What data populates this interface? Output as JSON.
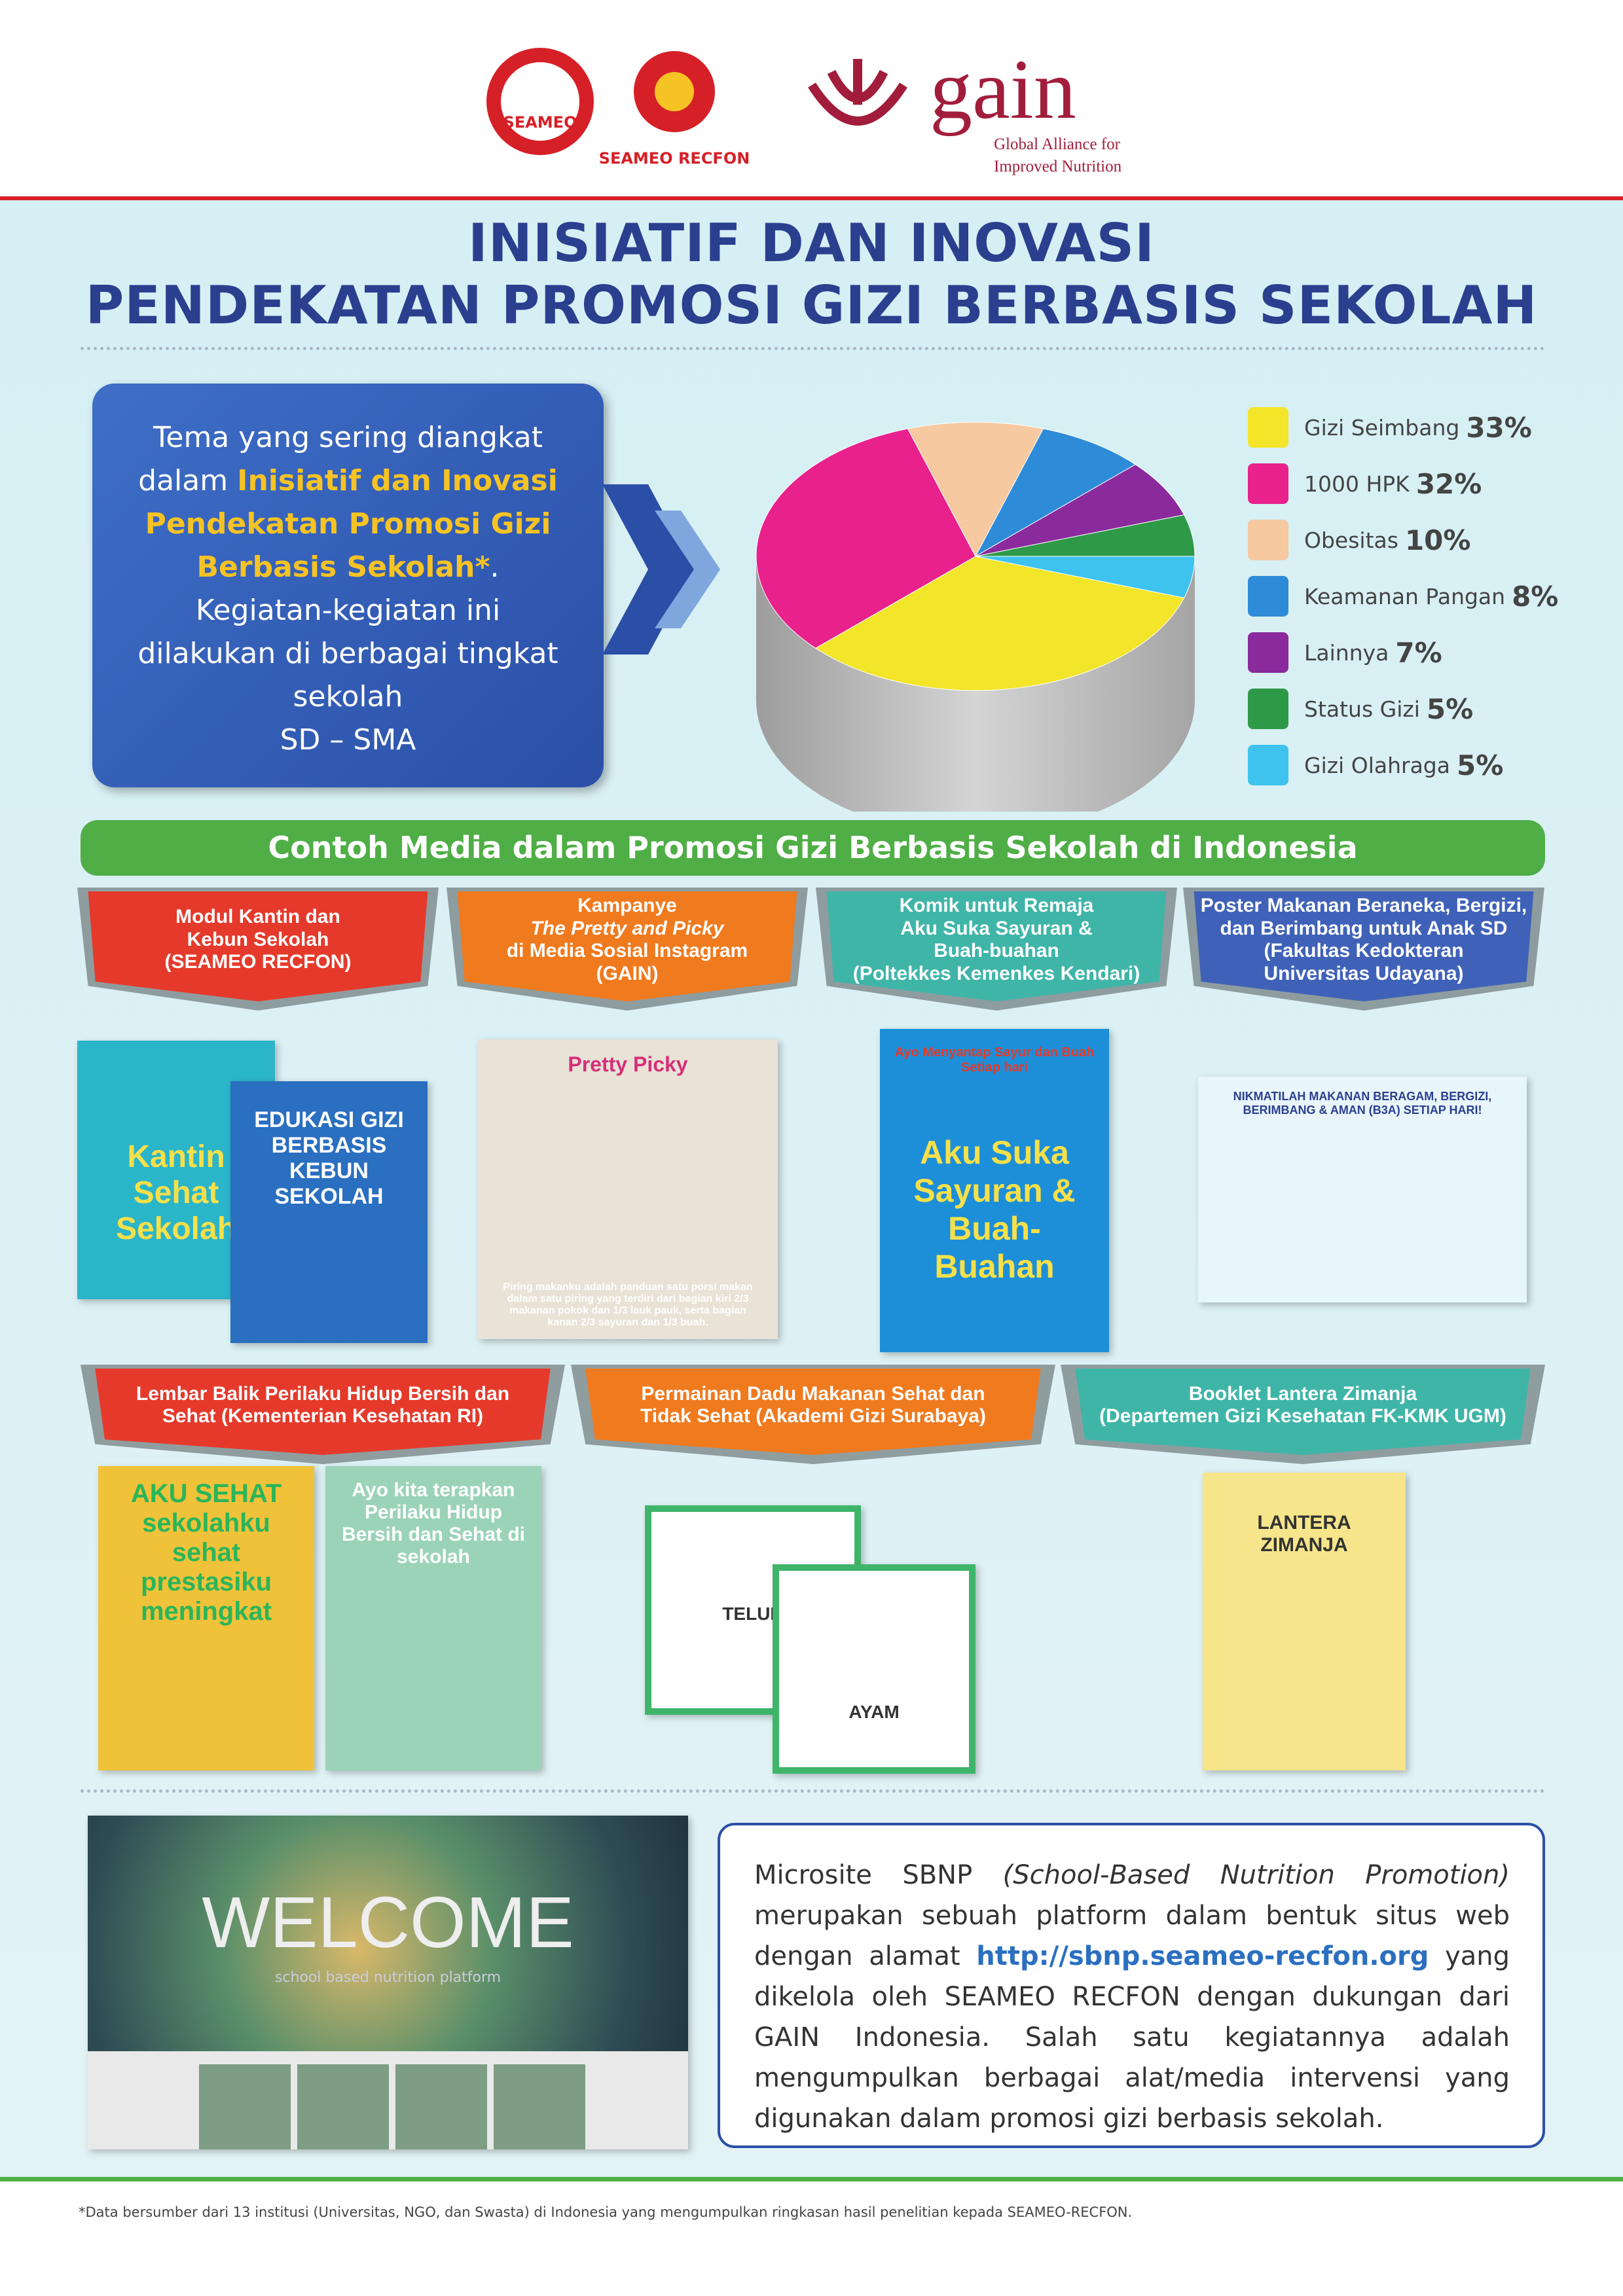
{
  "header": {
    "seameo": "SEAMEO",
    "recfon": "SEAMEO RECFON",
    "gain": "gain",
    "gain_full": [
      "Global Alliance for",
      "Improved Nutrition"
    ]
  },
  "title": [
    "INISIATIF DAN INOVASI",
    "PENDEKATAN PROMOSI GIZI BERBASIS SEKOLAH"
  ],
  "intro": {
    "text_1": "Tema yang sering diangkat dalam",
    "highlight": "Inisiatif dan Inovasi Pendekatan Promosi Gizi Berbasis Sekolah*",
    "text_2": ". Kegiatan-kegiatan ini dilakukan di berbagai tingkat sekolah",
    "text_3": "SD – SMA"
  },
  "chart_data": {
    "type": "pie",
    "categories": [
      "Gizi Seimbang",
      "1000 HPK",
      "Obesitas",
      "Keamanan Pangan",
      "Lainnya",
      "Status Gizi",
      "Gizi Olahraga"
    ],
    "values": [
      33,
      32,
      10,
      8,
      7,
      5,
      5
    ],
    "value_labels": [
      "33%",
      "32%",
      "10%",
      "8%",
      "7%",
      "5%",
      "5%"
    ],
    "colors": [
      "#f2e52a",
      "#e8218c",
      "#f6c9a0",
      "#2e8bd8",
      "#8b2a9c",
      "#2e9a48",
      "#3ec3ee"
    ],
    "legend": "right"
  },
  "media": {
    "banner": "Contoh Media dalam Promosi Gizi Berbasis Sekolah di Indonesia",
    "items": [
      {
        "title": [
          "Modul Kantin dan",
          "Kebun Sekolah",
          "(SEAMEO RECFON)"
        ],
        "image_texts": [
          "Kantin Sehat Sekolah",
          "EDUKASI GIZI BERBASIS KEBUN SEKOLAH"
        ]
      },
      {
        "title": [
          "Kampanye",
          "The Pretty and Picky",
          "di Media Sosial Instagram",
          "(GAIN)"
        ],
        "image_texts": [
          "Pretty Picky",
          "Piring makanku adalah panduan satu porsi makan dalam satu piring yang terdiri dari bagian kiri 2/3 makanan pokok dan 1/3 lauk pauk, serta bagian kanan 2/3 sayuran dan 1/3 buah."
        ]
      },
      {
        "title": [
          "Komik untuk Remaja",
          "Aku Suka Sayuran &",
          "Buah-buahan",
          "(Poltekkes Kemenkes Kendari)"
        ],
        "image_texts": [
          "Ayo Menyantap Sayur dan Buah Setiap hari",
          "Aku Suka Sayuran & Buah-Buahan"
        ]
      },
      {
        "title": [
          "Poster Makanan Beraneka, Bergizi,",
          "dan Berimbang untuk Anak SD",
          "(Fakultas Kedokteran",
          "Universitas Udayana)"
        ],
        "image_texts": [
          "NIKMATILAH MAKANAN BERAGAM, BERGIZI, BERIMBANG & AMAN (B3A) SETIAP HARI!"
        ]
      },
      {
        "title": [
          "Lembar Balik Perilaku Hidup Bersih dan",
          "Sehat (Kementerian Kesehatan RI)"
        ],
        "image_texts": [
          "AKU SEHAT sekolahku sehat prestasiku meningkat",
          "Ayo kita terapkan Perilaku Hidup Bersih dan Sehat di sekolah"
        ]
      },
      {
        "title": [
          "Permainan Dadu Makanan Sehat dan",
          "Tidak Sehat (Akademi Gizi Surabaya)"
        ],
        "image_texts": [
          "TELUR",
          "AYAM"
        ]
      },
      {
        "title": [
          "Booklet Lantera Zimanja",
          "(Departemen Gizi Kesehatan FK-KMK UGM)"
        ],
        "image_texts": [
          "LANTERA ZIMANJA"
        ]
      }
    ]
  },
  "microsite": {
    "welcome": "WELCOME",
    "welcome_sub": "school based nutrition platform",
    "text_1": "Microsite SBNP",
    "italic": "(School-Based Nutrition Promotion)",
    "text_2": "merupakan sebuah platform dalam bentuk situs web dengan alamat",
    "link": "http://sbnp.seameo-recfon.org",
    "text_3": "yang dikelola oleh SEAMEO RECFON dengan dukungan dari GAIN Indonesia. Salah satu kegiatannya adalah mengumpulkan berbagai alat/media intervensi yang digunakan dalam promosi gizi berbasis sekolah."
  },
  "footnote": "*Data bersumber dari 13 institusi (Universitas, NGO, dan Swasta) di Indonesia yang mengumpulkan ringkasan hasil penelitian kepada SEAMEO-RECFON."
}
